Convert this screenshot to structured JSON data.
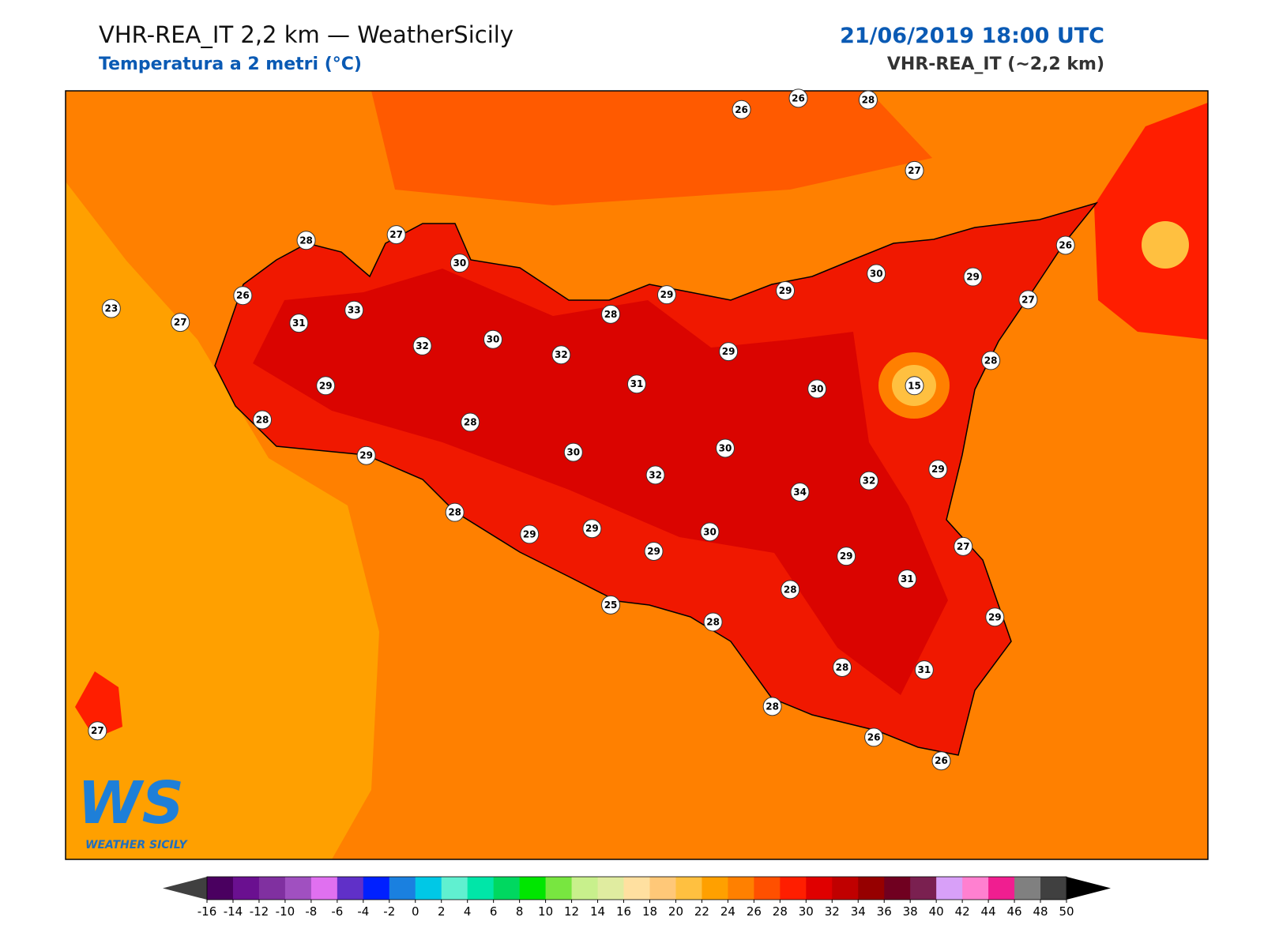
{
  "header": {
    "title": "VHR-REA_IT 2,2 km — WeatherSicily",
    "subtitle": "Temperatura a 2 metri (°C)",
    "datetime": "21/06/2019 18:00 UTC",
    "model": "VHR-REA_IT (~2,2 km)"
  },
  "stations": [
    26,
    26,
    28,
    27,
    28,
    27,
    30,
    26,
    30,
    29,
    27,
    23,
    27,
    26,
    33,
    31,
    29,
    29,
    28,
    32,
    30,
    32,
    29,
    28,
    31,
    30,
    15,
    29,
    28,
    28,
    29,
    30,
    30,
    32,
    29,
    34,
    32,
    28,
    29,
    29,
    30,
    29,
    27,
    29,
    31,
    28,
    25,
    28,
    29,
    28,
    31,
    28,
    26,
    26,
    27
  ],
  "colorbar": {
    "ticks": [
      -16,
      -14,
      -12,
      -10,
      -8,
      -6,
      -4,
      -2,
      0,
      2,
      4,
      6,
      8,
      10,
      12,
      14,
      16,
      18,
      20,
      22,
      24,
      26,
      28,
      30,
      32,
      34,
      36,
      38,
      40,
      42,
      44,
      46,
      48,
      50
    ],
    "colors": [
      "#4a0060",
      "#6a1090",
      "#8030a0",
      "#a050c0",
      "#e070f0",
      "#6030c8",
      "#0020ff",
      "#1a80e0",
      "#00c8e6",
      "#60f0d0",
      "#00e6a8",
      "#00d860",
      "#00e600",
      "#78e640",
      "#c8f08c",
      "#e0eca0",
      "#ffe0a0",
      "#ffc878",
      "#ffc040",
      "#ffa000",
      "#ff8000",
      "#ff5000",
      "#ff1e00",
      "#e00000",
      "#c00000",
      "#960000",
      "#700020",
      "#7a2050",
      "#d8a0f8",
      "#ff80d0",
      "#f01e90",
      "#808080",
      "#404040"
    ],
    "under_color": "#404040",
    "over_color": "#000000"
  },
  "logo": {
    "letters": "WS",
    "text": "WEATHER SICILY"
  }
}
